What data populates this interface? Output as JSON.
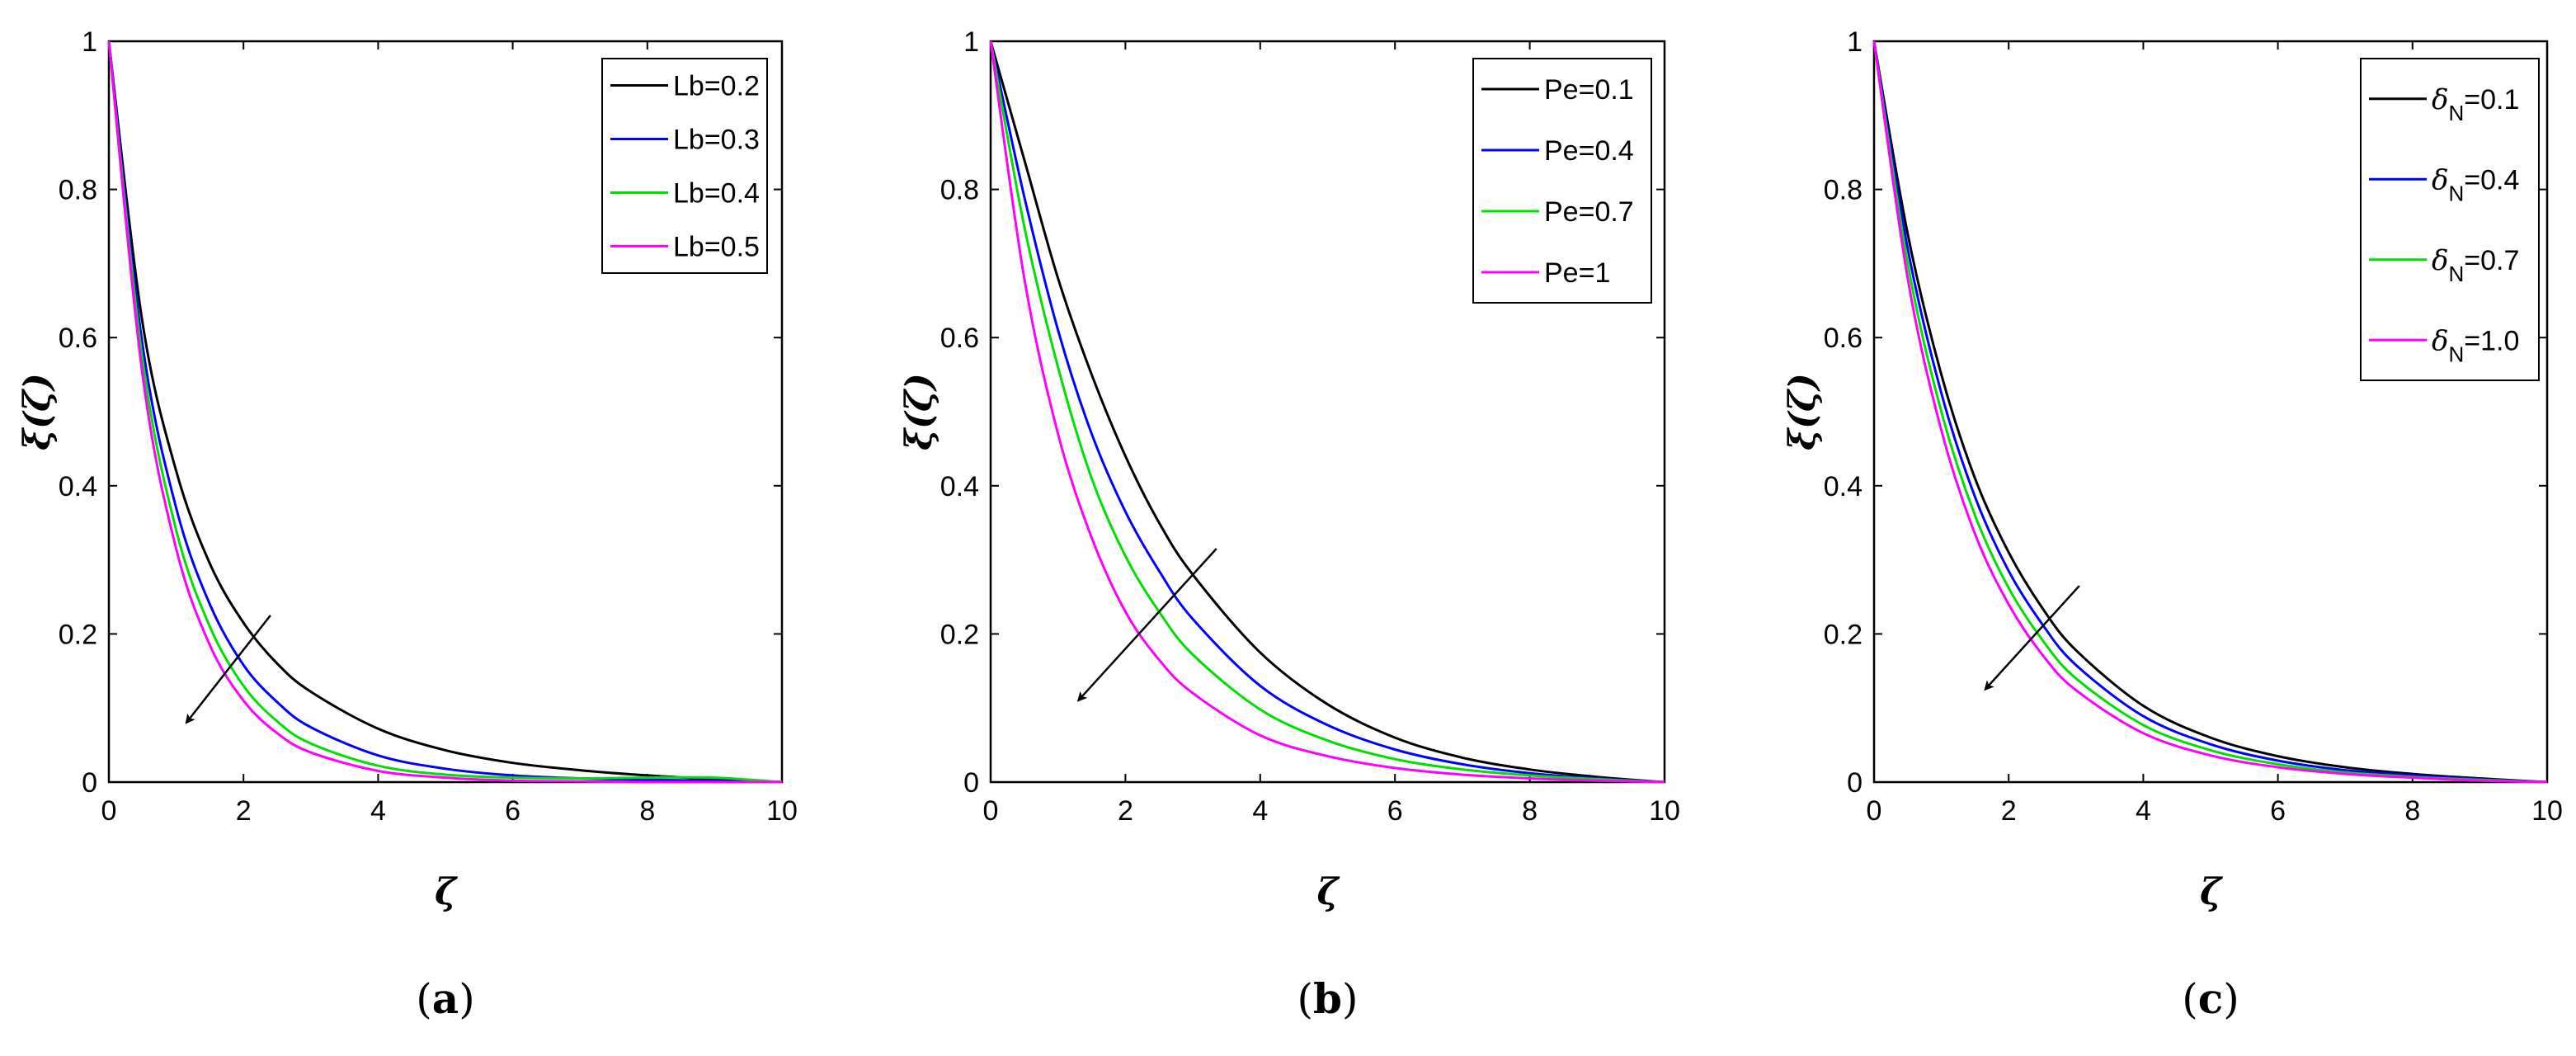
{
  "chart_data": [
    {
      "type": "line",
      "panel_label": "a",
      "xlabel": "ζ",
      "ylabel": "ξ(ζ)",
      "xlim": [
        0,
        10
      ],
      "ylim": [
        0,
        1
      ],
      "xticks": [
        "0",
        "2",
        "4",
        "6",
        "8",
        "10"
      ],
      "yticks": [
        "0",
        "0.2",
        "0.4",
        "0.6",
        "0.8",
        "1"
      ],
      "legend_position": "top-right",
      "arrow": {
        "from": [
          2.4,
          0.225
        ],
        "to": [
          1.15,
          0.08
        ]
      },
      "x": [
        0,
        0.5,
        1,
        1.5,
        2,
        2.5,
        3,
        4,
        5,
        6,
        7,
        8,
        9,
        10
      ],
      "series": [
        {
          "label": "Lb=0.2",
          "color": "#000000",
          "values": [
            1.0,
            0.62,
            0.42,
            0.295,
            0.215,
            0.16,
            0.122,
            0.072,
            0.043,
            0.026,
            0.016,
            0.009,
            0.004,
            0.0
          ]
        },
        {
          "label": "Lb=0.3",
          "color": "#0000ff",
          "values": [
            1.0,
            0.59,
            0.37,
            0.24,
            0.158,
            0.108,
            0.074,
            0.036,
            0.018,
            0.009,
            0.005,
            0.003,
            0.002,
            0.0
          ]
        },
        {
          "label": "Lb=0.4",
          "color": "#00e000",
          "values": [
            1.0,
            0.57,
            0.34,
            0.21,
            0.13,
            0.082,
            0.052,
            0.022,
            0.01,
            0.006,
            0.005,
            0.006,
            0.006,
            0.0
          ]
        },
        {
          "label": "Lb=0.5",
          "color": "#ff00ff",
          "values": [
            1.0,
            0.55,
            0.315,
            0.185,
            0.11,
            0.066,
            0.04,
            0.015,
            0.006,
            0.002,
            0.001,
            0.0,
            0.0,
            0.0
          ]
        }
      ]
    },
    {
      "type": "line",
      "panel_label": "b",
      "xlabel": "ζ",
      "ylabel": "ξ(ζ)",
      "xlim": [
        0,
        10
      ],
      "ylim": [
        0,
        1
      ],
      "xticks": [
        "0",
        "2",
        "4",
        "6",
        "8",
        "10"
      ],
      "yticks": [
        "0",
        "0.2",
        "0.4",
        "0.6",
        "0.8",
        "1"
      ],
      "legend_position": "top-right",
      "arrow": {
        "from": [
          3.35,
          0.315
        ],
        "to": [
          1.3,
          0.11
        ]
      },
      "x": [
        0,
        0.5,
        1,
        1.5,
        2,
        2.5,
        3,
        4,
        5,
        6,
        7,
        8,
        9,
        10
      ],
      "series": [
        {
          "label": "Pe=0.1",
          "color": "#000000",
          "values": [
            1.0,
            0.84,
            0.68,
            0.55,
            0.44,
            0.35,
            0.28,
            0.175,
            0.105,
            0.06,
            0.033,
            0.017,
            0.007,
            0.0
          ]
        },
        {
          "label": "Pe=0.4",
          "color": "#0000ff",
          "values": [
            1.0,
            0.79,
            0.61,
            0.47,
            0.365,
            0.285,
            0.22,
            0.13,
            0.077,
            0.044,
            0.024,
            0.012,
            0.005,
            0.0
          ]
        },
        {
          "label": "Pe=0.7",
          "color": "#00e000",
          "values": [
            1.0,
            0.75,
            0.56,
            0.41,
            0.305,
            0.23,
            0.172,
            0.098,
            0.056,
            0.031,
            0.017,
            0.009,
            0.004,
            0.0
          ]
        },
        {
          "label": "Pe=1",
          "color": "#ff00ff",
          "values": [
            1.0,
            0.68,
            0.47,
            0.33,
            0.23,
            0.165,
            0.12,
            0.063,
            0.035,
            0.019,
            0.01,
            0.005,
            0.002,
            0.0
          ]
        }
      ]
    },
    {
      "type": "line",
      "panel_label": "c",
      "xlabel": "ζ",
      "ylabel": "ξ(ζ)",
      "xlim": [
        0,
        10
      ],
      "ylim": [
        0,
        1
      ],
      "xticks": [
        "0",
        "2",
        "4",
        "6",
        "8",
        "10"
      ],
      "yticks": [
        "0",
        "0.2",
        "0.4",
        "0.6",
        "0.8",
        "1"
      ],
      "legend_position": "top-right",
      "arrow": {
        "from": [
          3.05,
          0.265
        ],
        "to": [
          1.65,
          0.125
        ]
      },
      "legend_subscript": true,
      "x": [
        0,
        0.5,
        1,
        1.5,
        2,
        2.5,
        3,
        4,
        5,
        6,
        7,
        8,
        9,
        10
      ],
      "series": [
        {
          "label": "δ",
          "label_sub": "N",
          "label_tail": "=0.1",
          "color": "#000000",
          "values": [
            1.0,
            0.74,
            0.55,
            0.41,
            0.31,
            0.235,
            0.178,
            0.103,
            0.06,
            0.035,
            0.02,
            0.011,
            0.005,
            0.0
          ]
        },
        {
          "label": "δ",
          "label_sub": "N",
          "label_tail": "=0.4",
          "color": "#0000ff",
          "values": [
            1.0,
            0.72,
            0.525,
            0.385,
            0.285,
            0.213,
            0.158,
            0.089,
            0.051,
            0.029,
            0.016,
            0.009,
            0.004,
            0.0
          ]
        },
        {
          "label": "δ",
          "label_sub": "N",
          "label_tail": "=0.7",
          "color": "#00e000",
          "values": [
            1.0,
            0.7,
            0.5,
            0.36,
            0.262,
            0.192,
            0.14,
            0.077,
            0.043,
            0.024,
            0.013,
            0.007,
            0.003,
            0.0
          ]
        },
        {
          "label": "δ",
          "label_sub": "N",
          "label_tail": "=1.0",
          "color": "#ff00ff",
          "values": [
            1.0,
            0.68,
            0.475,
            0.335,
            0.24,
            0.172,
            0.124,
            0.066,
            0.036,
            0.02,
            0.011,
            0.006,
            0.002,
            0.0
          ]
        }
      ]
    }
  ]
}
